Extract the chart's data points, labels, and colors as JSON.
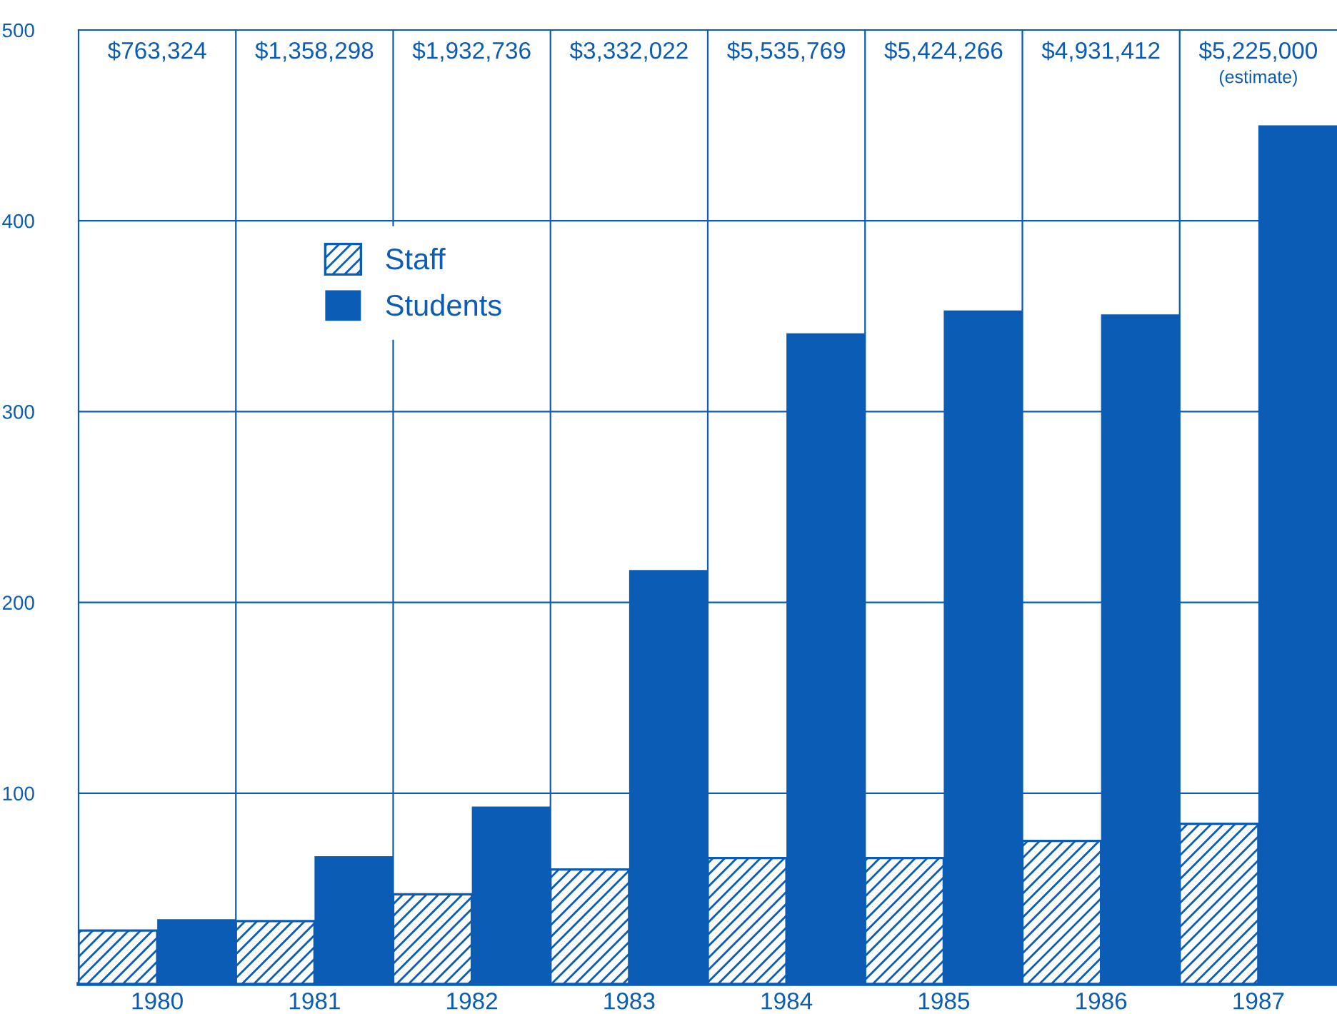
{
  "chart_data": {
    "type": "bar",
    "categories": [
      "1980",
      "1981",
      "1982",
      "1983",
      "1984",
      "1985",
      "1986",
      "1987"
    ],
    "series": [
      {
        "name": "Staff",
        "color": "#0b5cb5",
        "values": [
          28,
          33,
          47,
          60,
          66,
          66,
          75,
          84
        ]
      },
      {
        "name": "Students",
        "color": "#0b5cb5",
        "values": [
          34,
          67,
          93,
          217,
          341,
          353,
          351,
          450
        ]
      }
    ],
    "ylim": [
      0,
      500
    ],
    "yticks": [
      100,
      200,
      300,
      400,
      500
    ],
    "grid": true,
    "legend": "top left",
    "annotations": [
      "$763,324",
      "$1,358,298",
      "$1,932,736",
      "$3,332,022",
      "$5,535,769",
      "$5,424,266",
      "$4,931,412",
      "$5,225,000\n(estimate)"
    ]
  }
}
